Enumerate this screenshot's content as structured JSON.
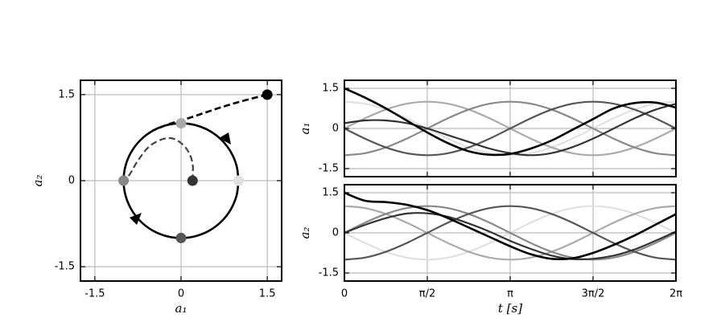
{
  "chart_data": [
    {
      "type": "line",
      "xlabel": "a₁",
      "ylabel": "a₂",
      "xlim": [
        -1.75,
        1.75
      ],
      "ylim": [
        -1.75,
        1.75
      ],
      "xticks": [
        -1.5,
        0,
        1.5
      ],
      "yticks": [
        -1.5,
        0,
        1.5
      ],
      "grid": true,
      "series": [
        {
          "color": "#000000",
          "style": "solid",
          "x": [
            1,
            0.966,
            0.866,
            0.707,
            0.5,
            0.259,
            0,
            -0.259,
            -0.5,
            -0.707,
            -0.866,
            -0.966,
            -1,
            -0.966,
            -0.866,
            -0.707,
            -0.5,
            -0.259,
            0,
            0.259,
            0.5,
            0.707,
            0.866,
            0.966,
            1
          ],
          "y": [
            0,
            0.259,
            0.5,
            0.707,
            0.866,
            0.966,
            1,
            0.966,
            0.866,
            0.707,
            0.5,
            0.259,
            0,
            -0.259,
            -0.5,
            -0.707,
            -0.866,
            -0.966,
            -1,
            -0.966,
            -0.866,
            -0.707,
            -0.5,
            -0.259,
            0
          ]
        },
        {
          "color": "#000000",
          "style": "dashed",
          "x": [
            1.5,
            1.3,
            1.0,
            0.7,
            0.4,
            0.1,
            -0.2,
            -0.5
          ],
          "y": [
            1.5,
            1.45,
            1.37,
            1.28,
            1.18,
            1.08,
            0.99,
            0.87
          ]
        },
        {
          "color": "#444444",
          "style": "dashed",
          "x": [
            0.2,
            0.2,
            0.1,
            -0.1,
            -0.3,
            -0.55,
            -0.75,
            -0.9,
            -1
          ],
          "y": [
            0,
            0.3,
            0.55,
            0.72,
            0.73,
            0.6,
            0.35,
            0.1,
            0
          ]
        }
      ],
      "points": {
        "x": [
          1.5,
          0,
          -1,
          0,
          1,
          0.2
        ],
        "y": [
          1.5,
          1,
          0,
          -1,
          0,
          0
        ],
        "colors": [
          "#000000",
          "#aaaaaa",
          "#888888",
          "#555555",
          "#e0e0e0",
          "#333333"
        ]
      }
    },
    {
      "type": "line",
      "ylabel": "a₁",
      "xlim": [
        0,
        6.2832
      ],
      "ylim": [
        -1.8,
        1.8
      ],
      "yticks": [
        -1.5,
        0,
        1.5
      ],
      "grid": true,
      "sharex": true,
      "x": [
        0,
        0.3927,
        0.7854,
        1.1781,
        1.5708,
        1.9635,
        2.3562,
        2.7489,
        3.1416,
        3.5343,
        3.927,
        4.3197,
        4.7124,
        5.1051,
        5.4978,
        5.8905,
        6.2832
      ],
      "series": [
        {
          "color": "#e0e0e0",
          "style": "solid",
          "values": [
            1,
            0.924,
            0.707,
            0.383,
            0,
            -0.383,
            -0.707,
            -0.924,
            -1,
            -0.924,
            -0.707,
            -0.383,
            0,
            0.383,
            0.707,
            0.924,
            1
          ]
        },
        {
          "color": "#aaaaaa",
          "style": "solid",
          "values": [
            0,
            0.383,
            0.707,
            0.924,
            1,
            0.924,
            0.707,
            0.383,
            0,
            -0.383,
            -0.707,
            -0.924,
            -1,
            -0.924,
            -0.707,
            -0.383,
            0
          ]
        },
        {
          "color": "#888888",
          "style": "solid",
          "values": [
            -1,
            -0.924,
            -0.707,
            -0.383,
            0,
            0.383,
            0.707,
            0.924,
            1,
            0.924,
            0.707,
            0.383,
            0,
            -0.383,
            -0.707,
            -0.924,
            -1
          ]
        },
        {
          "color": "#555555",
          "style": "solid",
          "values": [
            0,
            -0.383,
            -0.707,
            -0.924,
            -1,
            -0.924,
            -0.707,
            -0.383,
            0,
            0.383,
            0.707,
            0.924,
            1,
            0.924,
            0.707,
            0.383,
            0
          ]
        },
        {
          "color": "#333333",
          "style": "solid",
          "values": [
            0.2,
            0.3,
            0.3,
            0.2,
            0,
            -0.25,
            -0.5,
            -0.75,
            -0.92,
            -1,
            -0.92,
            -0.7,
            -0.38,
            0,
            0.38,
            0.7,
            0.92
          ]
        },
        {
          "color": "#000000",
          "style": "solid",
          "values": [
            1.5,
            1.15,
            0.75,
            0.3,
            -0.15,
            -0.55,
            -0.85,
            -0.98,
            -0.95,
            -0.75,
            -0.45,
            -0.05,
            0.35,
            0.75,
            0.95,
            0.97,
            0.78
          ]
        }
      ]
    },
    {
      "type": "line",
      "ylabel": "a₂",
      "xlabel": "t [s]",
      "xlim": [
        0,
        6.2832
      ],
      "ylim": [
        -1.8,
        1.8
      ],
      "yticks": [
        -1.5,
        0,
        1.5
      ],
      "grid": true,
      "xticks": [
        {
          "value": 0,
          "label": "0"
        },
        {
          "value": 1.5708,
          "label": "π/2"
        },
        {
          "value": 3.1416,
          "label": "π"
        },
        {
          "value": 4.7124,
          "label": "3π/2"
        },
        {
          "value": 6.2832,
          "label": "2π"
        }
      ],
      "x": [
        0,
        0.3927,
        0.7854,
        1.1781,
        1.5708,
        1.9635,
        2.3562,
        2.7489,
        3.1416,
        3.5343,
        3.927,
        4.3197,
        4.7124,
        5.1051,
        5.4978,
        5.8905,
        6.2832
      ],
      "series": [
        {
          "color": "#e0e0e0",
          "style": "solid",
          "values": [
            0,
            -0.383,
            -0.707,
            -0.924,
            -1,
            -0.924,
            -0.707,
            -0.383,
            0,
            0.383,
            0.707,
            0.924,
            1,
            0.924,
            0.707,
            0.383,
            0
          ]
        },
        {
          "color": "#aaaaaa",
          "style": "solid",
          "values": [
            1,
            0.924,
            0.707,
            0.383,
            0,
            -0.383,
            -0.707,
            -0.924,
            -1,
            -0.924,
            -0.707,
            -0.383,
            0,
            0.383,
            0.707,
            0.924,
            1
          ]
        },
        {
          "color": "#888888",
          "style": "solid",
          "values": [
            0,
            0.383,
            0.707,
            0.924,
            1,
            0.924,
            0.707,
            0.383,
            0,
            -0.383,
            -0.707,
            -0.924,
            -1,
            -0.924,
            -0.707,
            -0.383,
            0
          ]
        },
        {
          "color": "#555555",
          "style": "solid",
          "values": [
            -1,
            -0.924,
            -0.707,
            -0.383,
            0,
            0.383,
            0.707,
            0.924,
            1,
            0.924,
            0.707,
            0.383,
            0,
            -0.383,
            -0.707,
            -0.924,
            -1
          ]
        },
        {
          "color": "#333333",
          "style": "solid",
          "values": [
            0,
            0.3,
            0.55,
            0.72,
            0.73,
            0.6,
            0.35,
            0.05,
            -0.3,
            -0.6,
            -0.85,
            -0.98,
            -0.97,
            -0.85,
            -0.62,
            -0.3,
            0.05
          ]
        },
        {
          "color": "#000000",
          "style": "solid",
          "values": [
            1.5,
            1.2,
            1.15,
            1.05,
            0.85,
            0.55,
            0.2,
            -0.15,
            -0.5,
            -0.8,
            -0.97,
            -0.95,
            -0.75,
            -0.45,
            -0.1,
            0.3,
            0.7
          ]
        }
      ]
    }
  ]
}
